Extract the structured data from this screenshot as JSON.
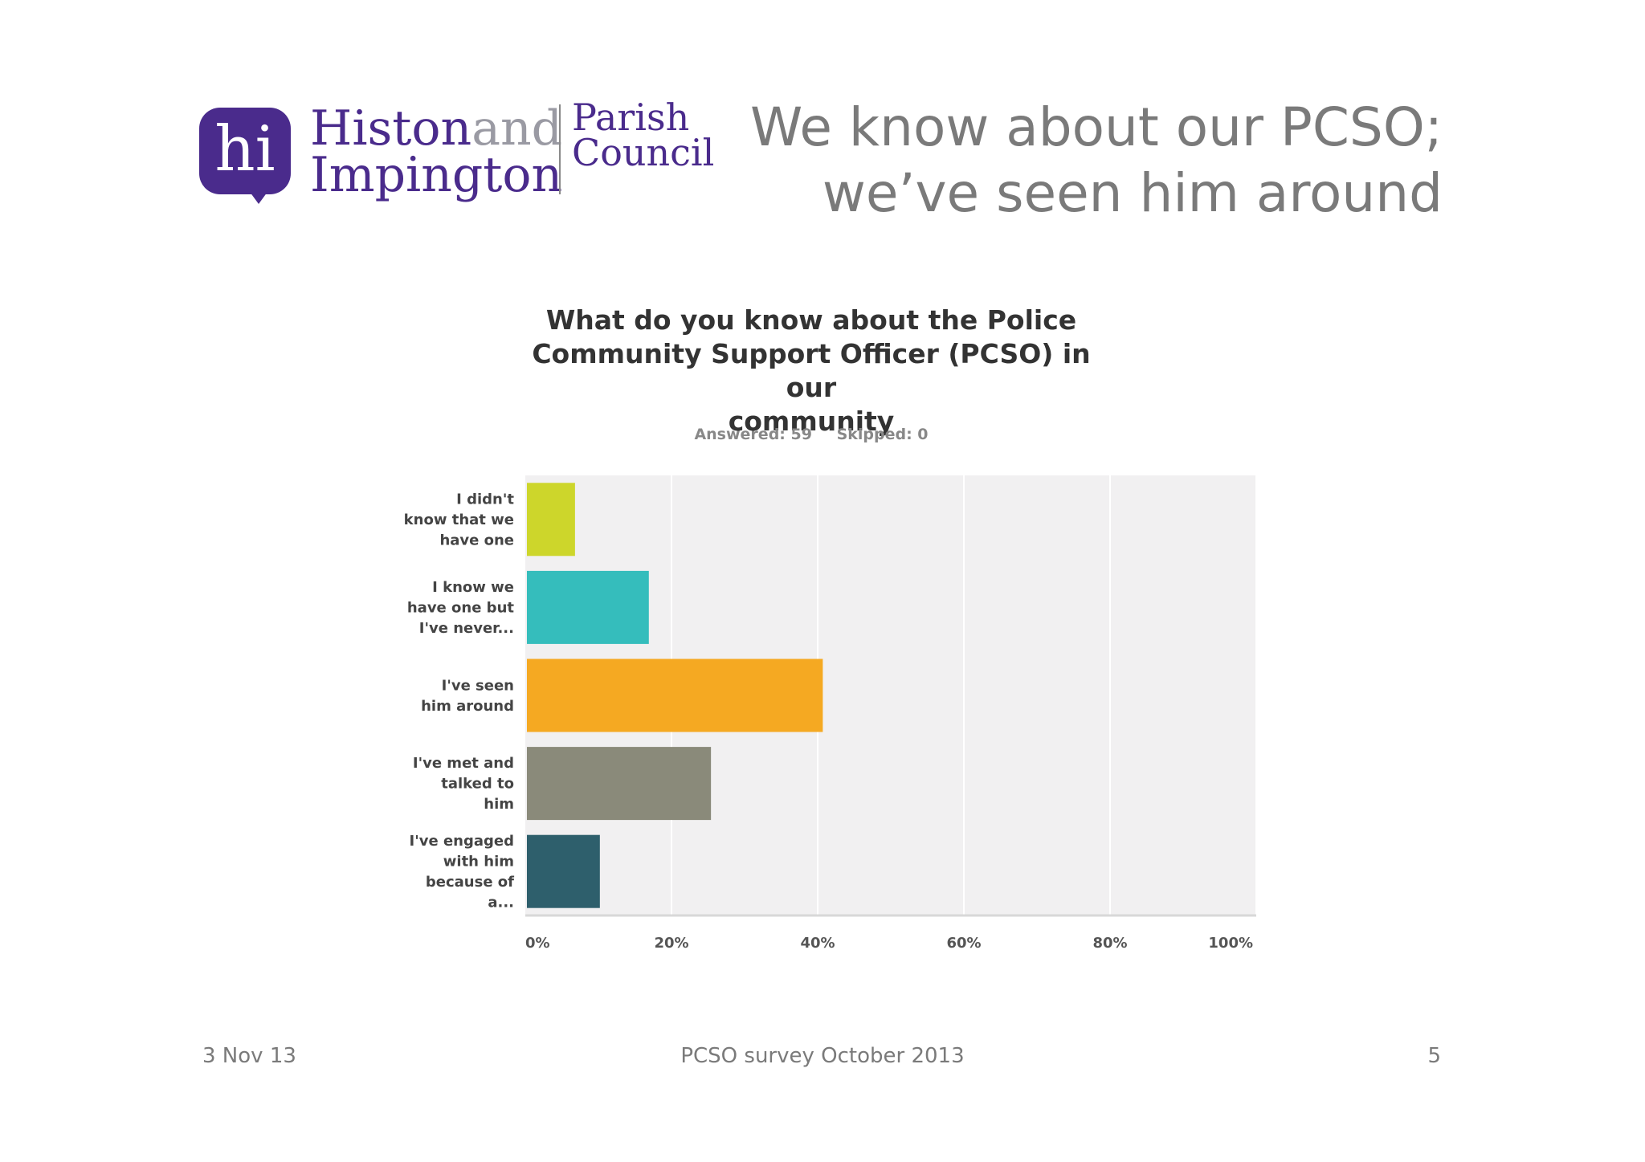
{
  "logo": {
    "badge": "hi",
    "line1a": "Histon",
    "line1b": "and",
    "line2": "Impington",
    "council1": "Parish",
    "council2": "Council"
  },
  "slide_title": {
    "line1": "We know about our PCSO;",
    "line2": "we’ve seen him around"
  },
  "chart_data": {
    "type": "bar",
    "orientation": "horizontal",
    "title_lines": [
      "What do you know about the Police",
      "Community Support Officer (PCSO) in our",
      "community"
    ],
    "answered": "Answered: 59",
    "skipped": "Skipped: 0",
    "categories": [
      [
        "I didn't",
        "know that we",
        "have one"
      ],
      [
        "I know we",
        "have one but",
        "I've never..."
      ],
      [
        "I've seen",
        "him around"
      ],
      [
        "I've met and",
        "talked to",
        "him"
      ],
      [
        "I've engaged",
        "with him",
        "because of",
        "a..."
      ]
    ],
    "values": [
      6.8,
      16.9,
      40.7,
      25.4,
      10.2
    ],
    "colors": [
      "#cdd62b",
      "#35bdbc",
      "#f5a922",
      "#8a8a7a",
      "#2e5f6c"
    ],
    "xlim": [
      0,
      100
    ],
    "x_ticks": [
      "0%",
      "20%",
      "40%",
      "60%",
      "80%",
      "100%"
    ],
    "grid": true
  },
  "footer": {
    "date": "3 Nov 13",
    "center": "PCSO survey October 2013",
    "page": "5"
  }
}
